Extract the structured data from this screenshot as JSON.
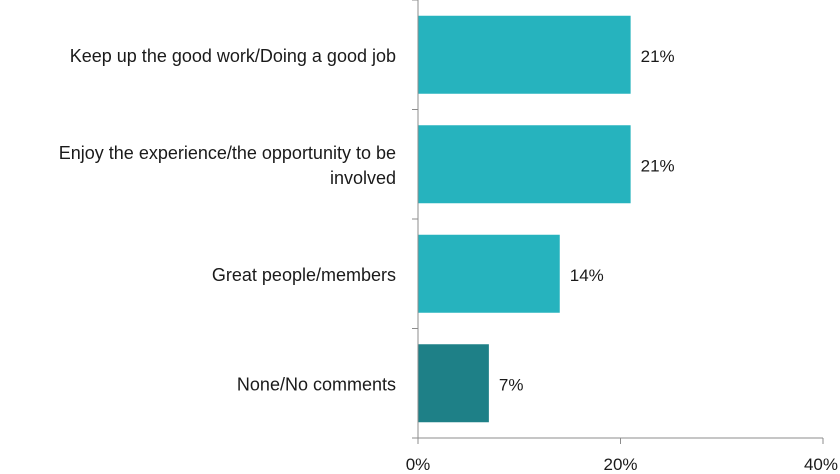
{
  "chart_data": {
    "type": "bar",
    "orientation": "horizontal",
    "title": "",
    "xlabel": "",
    "ylabel": "",
    "categories": [
      [
        "Keep up the good work/Doing a good job"
      ],
      [
        "Enjoy the experience/the opportunity to be",
        "involved"
      ],
      [
        "Great people/members"
      ],
      [
        "None/No comments"
      ]
    ],
    "values": [
      21,
      21,
      14,
      7
    ],
    "value_labels": [
      "21%",
      "21%",
      "14%",
      "7%"
    ],
    "bar_colors": [
      "#26B3BE",
      "#26B3BE",
      "#26B3BE",
      "#1E8087"
    ],
    "xlim": [
      0,
      40
    ],
    "xticks": [
      0,
      20,
      40
    ],
    "xtick_labels": [
      "0%",
      "20%",
      "40%"
    ],
    "grid": false,
    "legend": "none"
  }
}
